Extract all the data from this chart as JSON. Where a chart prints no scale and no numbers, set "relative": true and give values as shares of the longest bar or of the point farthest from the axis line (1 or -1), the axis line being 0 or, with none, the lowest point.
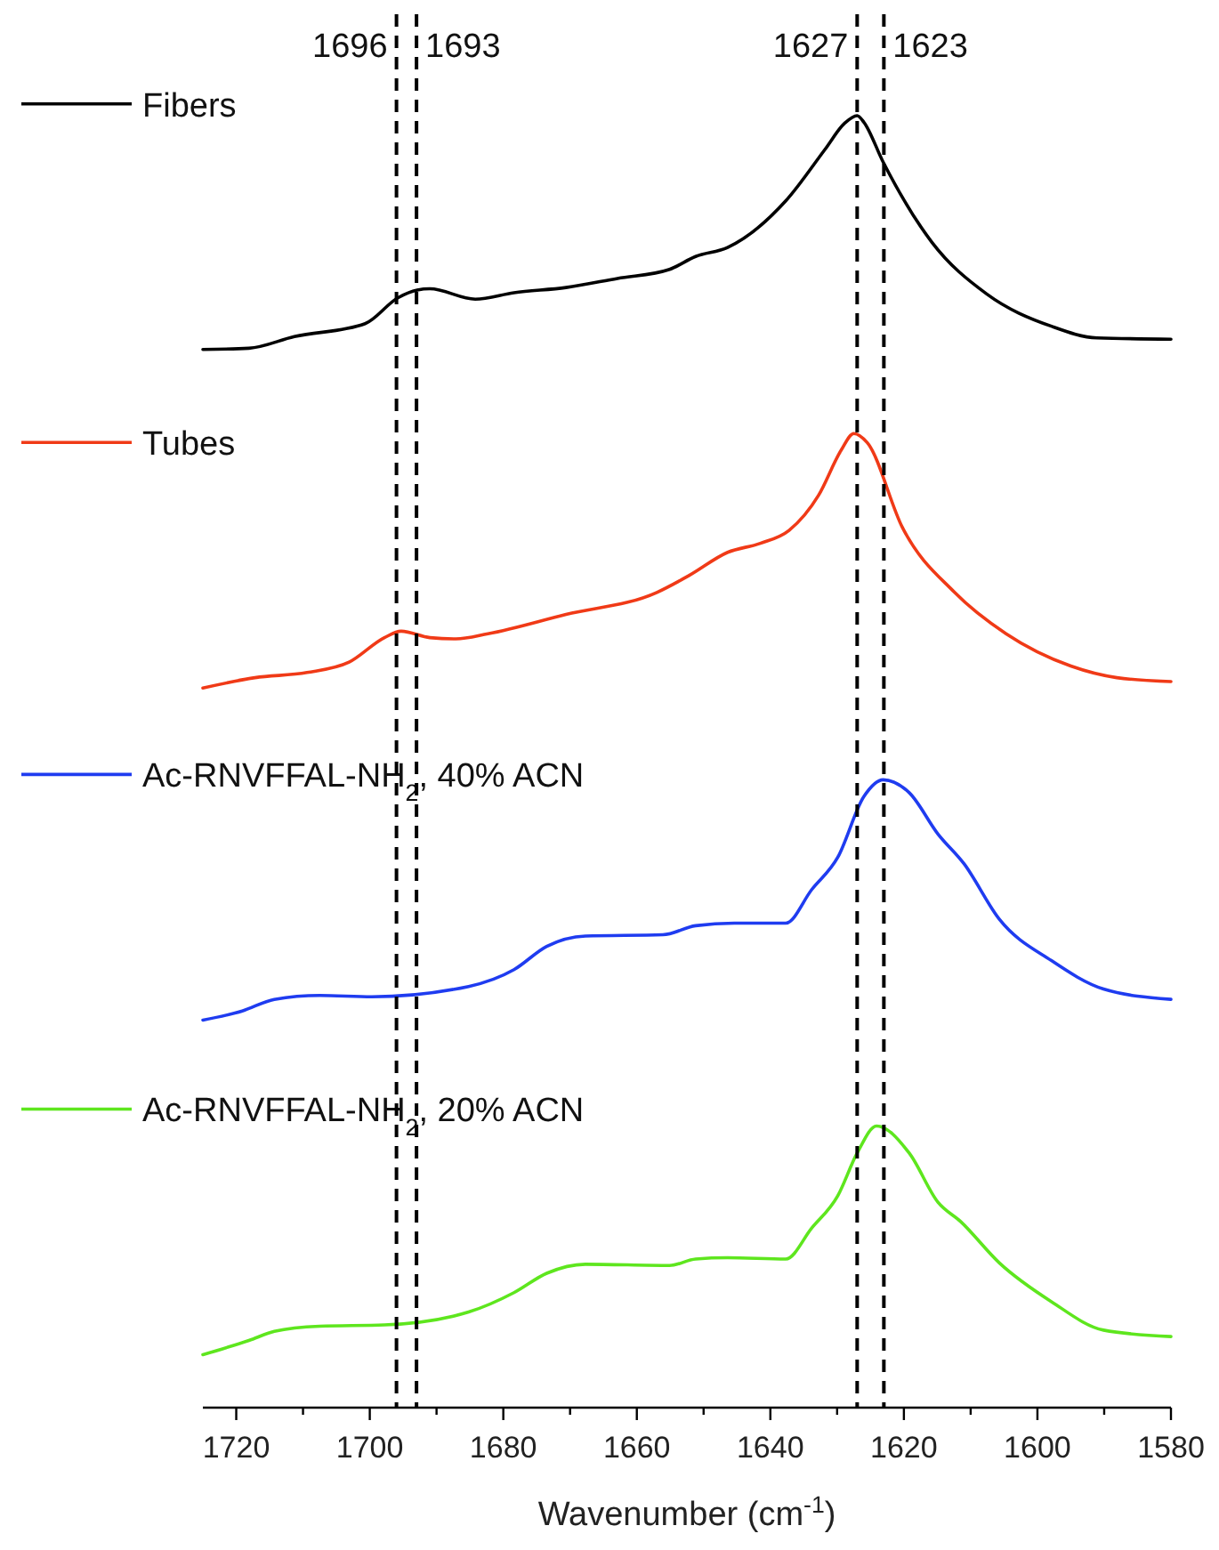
{
  "chart_data": {
    "type": "line",
    "relative": true,
    "xlabel": "Wavenumber (cm$^{-1}$)",
    "xlim": [
      1725,
      1580
    ],
    "xticks": [
      1720,
      {
        "value": 1710,
        "label": null
      },
      1700,
      {
        "value": 1690,
        "label": null
      },
      1680,
      {
        "value": 1670,
        "label": null
      },
      1660,
      {
        "value": 1650,
        "label": null
      },
      1640,
      {
        "value": 1630,
        "label": null
      },
      1620,
      {
        "value": 1610,
        "label": null
      },
      1600,
      {
        "value": 1590,
        "label": null
      },
      1580
    ],
    "grid": false,
    "line_style": "solid",
    "marker": "none",
    "legend": "top left",
    "series": [
      {
        "name": "Fibers",
        "color": "#000000",
        "x": [
          1725,
          1718.1,
          1711.3,
          1700.7,
          1695.8,
          1692.9,
          1691,
          1684.2,
          1678.4,
          1670.6,
          1662.9,
          1655.1,
          1651.2,
          1646.4,
          1637.7,
          1631.8,
          1628.9,
          1627,
          1626,
          1623.1,
          1615.8,
          1607.6,
          1597.9,
          1591.1,
          1580
        ],
        "values": [
          0.819,
          0.82,
          0.829,
          0.839,
          0.859,
          0.865,
          0.866,
          0.858,
          0.863,
          0.867,
          0.874,
          0.881,
          0.891,
          0.898,
          0.934,
          0.974,
          0.994,
          1,
          0.995,
          0.964,
          0.902,
          0.862,
          0.837,
          0.828,
          0.827
        ]
      },
      {
        "name": "Tubes",
        "color": "#f03a17",
        "x": [
          1725,
          1717.2,
          1709.4,
          1703.1,
          1697.8,
          1695.3,
          1691,
          1687.1,
          1682.3,
          1670.6,
          1657,
          1652.2,
          1646.4,
          1641.5,
          1637.2,
          1632.8,
          1629.4,
          1627.5,
          1625.5,
          1620.2,
          1612.4,
          1604.7,
          1595,
          1588.1,
          1580
        ],
        "values": [
          0.557,
          0.565,
          0.569,
          0.577,
          0.596,
          0.601,
          0.596,
          0.595,
          0.599,
          0.614,
          0.631,
          0.644,
          0.662,
          0.669,
          0.679,
          0.706,
          0.741,
          0.754,
          0.747,
          0.681,
          0.631,
          0.599,
          0.574,
          0.565,
          0.562
        ]
      },
      {
        "name": "Ac-RNVFFAL-NH$_{2}$, 40% ACN",
        "color": "#1f3cf0",
        "x": [
          1725,
          1719.1,
          1714.3,
          1707.5,
          1699.7,
          1685.2,
          1678.4,
          1673.5,
          1667.7,
          1656.1,
          1651.2,
          1645.4,
          1637.7,
          1633.8,
          1629.9,
          1626,
          1623.1,
          1619.2,
          1614.9,
          1611,
          1605.7,
          1597.9,
          1590.1,
          1580
        ],
        "values": [
          0.3,
          0.307,
          0.316,
          0.319,
          0.318,
          0.326,
          0.339,
          0.357,
          0.365,
          0.366,
          0.373,
          0.375,
          0.375,
          0.401,
          0.426,
          0.473,
          0.486,
          0.476,
          0.444,
          0.421,
          0.378,
          0.346,
          0.324,
          0.316
        ]
      },
      {
        "name": "Ac-RNVFFAL-NH$_{2}$, 20% ACN",
        "color": "#5ee61e",
        "x": [
          1725,
          1718.1,
          1714.3,
          1707.5,
          1697.8,
          1685.2,
          1678.4,
          1673.5,
          1667.7,
          1655.1,
          1651.2,
          1646.4,
          1637.7,
          1633.8,
          1629.9,
          1627,
          1624.1,
          1619.2,
          1614.9,
          1611.5,
          1605.7,
          1597.9,
          1590.1,
          1580
        ],
        "values": [
          0.041,
          0.052,
          0.059,
          0.063,
          0.064,
          0.074,
          0.089,
          0.104,
          0.111,
          0.11,
          0.115,
          0.116,
          0.115,
          0.139,
          0.164,
          0.197,
          0.218,
          0.197,
          0.159,
          0.144,
          0.112,
          0.082,
          0.06,
          0.055
        ]
      }
    ],
    "ref_lines": [
      {
        "axis": "x",
        "value": 1696,
        "label": "1696",
        "color": "#000000",
        "line_style": "dashed"
      },
      {
        "axis": "x",
        "value": 1693,
        "label": "1693",
        "color": "#000000",
        "line_style": "dashed"
      },
      {
        "axis": "x",
        "value": 1627,
        "label": "1627",
        "color": "#000000",
        "line_style": "dashed"
      },
      {
        "axis": "x",
        "value": 1623,
        "label": "1623",
        "color": "#000000",
        "line_style": "dashed"
      }
    ]
  }
}
